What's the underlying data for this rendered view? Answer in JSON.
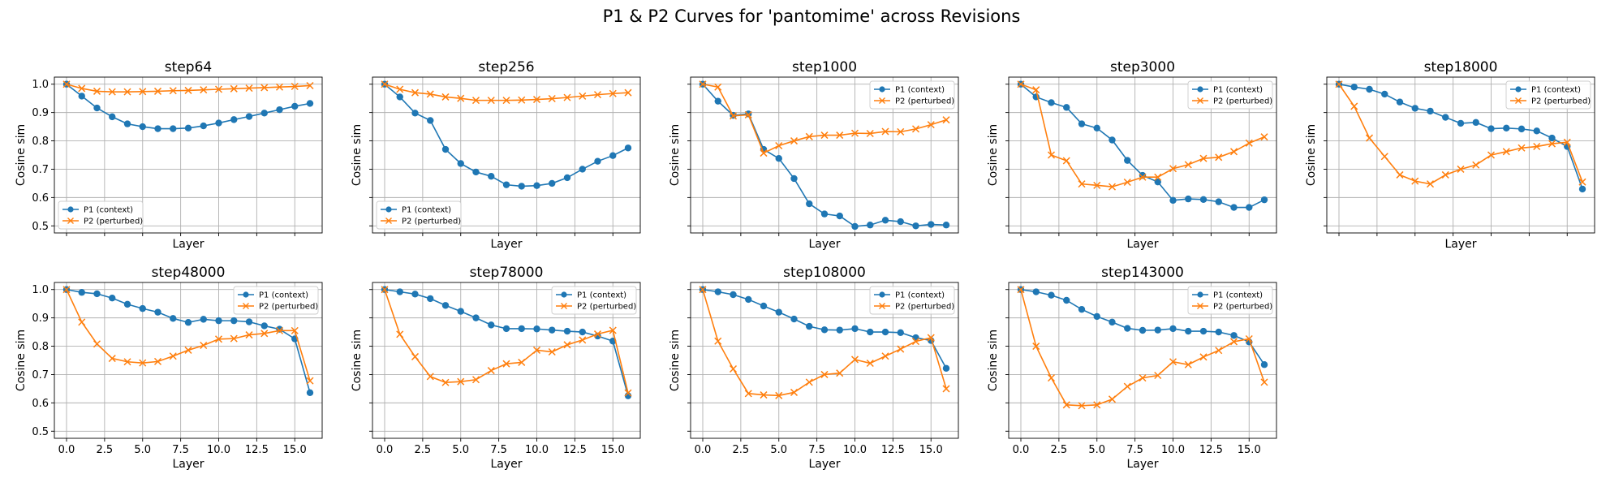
{
  "figure_title": "P1 & P2 Curves for 'pantomime' across Revisions",
  "chart_data": {
    "type": "line",
    "title": "P1 & P2 Curves for 'pantomime' across Revisions",
    "xlabel": "Layer",
    "ylabel": "Cosine sim",
    "xlim": [
      -0.8,
      16.8
    ],
    "ylim": [
      0.475,
      1.025
    ],
    "xticks": [
      0,
      2.5,
      5,
      7.5,
      10,
      12.5,
      15
    ],
    "xtick_labels": [
      "0.0",
      "2.5",
      "5.0",
      "7.5",
      "10.0",
      "12.5",
      "15.0"
    ],
    "yticks": [
      0.5,
      0.6,
      0.7,
      0.8,
      0.9,
      1.0
    ],
    "ytick_labels": [
      "0.5",
      "0.6",
      "0.7",
      "0.8",
      "0.9",
      "1.0"
    ],
    "grid": true,
    "x": [
      0,
      1,
      2,
      3,
      4,
      5,
      6,
      7,
      8,
      9,
      10,
      11,
      12,
      13,
      14,
      15,
      16
    ],
    "series_styles": [
      {
        "name": "P1 (context)",
        "color": "#1f77b4",
        "marker": "circle"
      },
      {
        "name": "P2 (perturbed)",
        "color": "#ff7f0e",
        "marker": "x"
      }
    ],
    "panels": [
      {
        "title": "step64",
        "legend": "lower-left",
        "series": [
          {
            "name": "P1 (context)",
            "values": [
              1.0,
              0.958,
              0.916,
              0.885,
              0.86,
              0.85,
              0.843,
              0.843,
              0.845,
              0.853,
              0.863,
              0.875,
              0.886,
              0.898,
              0.91,
              0.922,
              0.932
            ]
          },
          {
            "name": "P2 (perturbed)",
            "values": [
              1.0,
              0.985,
              0.975,
              0.973,
              0.973,
              0.974,
              0.975,
              0.977,
              0.978,
              0.98,
              0.982,
              0.984,
              0.986,
              0.988,
              0.99,
              0.992,
              0.995
            ]
          }
        ]
      },
      {
        "title": "step256",
        "legend": "lower-left",
        "series": [
          {
            "name": "P1 (context)",
            "values": [
              1.0,
              0.955,
              0.898,
              0.872,
              0.77,
              0.72,
              0.69,
              0.675,
              0.645,
              0.64,
              0.642,
              0.65,
              0.67,
              0.7,
              0.728,
              0.748,
              0.775
            ]
          },
          {
            "name": "P2 (perturbed)",
            "values": [
              1.0,
              0.982,
              0.97,
              0.965,
              0.955,
              0.95,
              0.943,
              0.943,
              0.943,
              0.944,
              0.946,
              0.949,
              0.953,
              0.958,
              0.963,
              0.967,
              0.97
            ]
          }
        ]
      },
      {
        "title": "step1000",
        "legend": "upper-right",
        "series": [
          {
            "name": "P1 (context)",
            "values": [
              1.0,
              0.94,
              0.89,
              0.895,
              0.77,
              0.738,
              0.667,
              0.578,
              0.542,
              0.535,
              0.498,
              0.503,
              0.52,
              0.515,
              0.5,
              0.505,
              0.503
            ]
          },
          {
            "name": "P2 (perturbed)",
            "values": [
              1.0,
              0.99,
              0.888,
              0.892,
              0.757,
              0.783,
              0.8,
              0.815,
              0.82,
              0.82,
              0.827,
              0.826,
              0.833,
              0.832,
              0.842,
              0.857,
              0.874
            ]
          }
        ]
      },
      {
        "title": "step3000",
        "legend": "upper-right",
        "series": [
          {
            "name": "P1 (context)",
            "values": [
              1.0,
              0.955,
              0.935,
              0.918,
              0.86,
              0.845,
              0.803,
              0.731,
              0.678,
              0.655,
              0.59,
              0.595,
              0.593,
              0.585,
              0.565,
              0.565,
              0.592
            ]
          },
          {
            "name": "P2 (perturbed)",
            "values": [
              1.0,
              0.98,
              0.75,
              0.73,
              0.648,
              0.643,
              0.638,
              0.654,
              0.672,
              0.672,
              0.702,
              0.716,
              0.738,
              0.742,
              0.762,
              0.792,
              0.814
            ]
          }
        ]
      },
      {
        "title": "step18000",
        "legend": "upper-right",
        "series": [
          {
            "name": "P1 (context)",
            "values": [
              1.0,
              0.99,
              0.982,
              0.965,
              0.937,
              0.915,
              0.905,
              0.883,
              0.862,
              0.865,
              0.843,
              0.845,
              0.842,
              0.835,
              0.81,
              0.78,
              0.63
            ]
          },
          {
            "name": "P2 (perturbed)",
            "values": [
              1.0,
              0.922,
              0.81,
              0.745,
              0.68,
              0.658,
              0.648,
              0.68,
              0.7,
              0.715,
              0.75,
              0.762,
              0.775,
              0.78,
              0.79,
              0.795,
              0.655
            ]
          }
        ]
      },
      {
        "title": "step48000",
        "legend": "upper-right",
        "series": [
          {
            "name": "P1 (context)",
            "values": [
              1.0,
              0.99,
              0.985,
              0.97,
              0.948,
              0.933,
              0.92,
              0.898,
              0.884,
              0.895,
              0.89,
              0.89,
              0.886,
              0.872,
              0.86,
              0.826,
              0.636
            ]
          },
          {
            "name": "P2 (perturbed)",
            "values": [
              1.0,
              0.885,
              0.808,
              0.757,
              0.745,
              0.741,
              0.746,
              0.765,
              0.786,
              0.803,
              0.825,
              0.827,
              0.84,
              0.845,
              0.855,
              0.855,
              0.678
            ]
          }
        ]
      },
      {
        "title": "step78000",
        "legend": "upper-right",
        "series": [
          {
            "name": "P1 (context)",
            "values": [
              1.0,
              0.992,
              0.984,
              0.968,
              0.944,
              0.923,
              0.9,
              0.875,
              0.862,
              0.862,
              0.861,
              0.857,
              0.853,
              0.85,
              0.836,
              0.818,
              0.625
            ]
          },
          {
            "name": "P2 (perturbed)",
            "values": [
              1.0,
              0.842,
              0.763,
              0.693,
              0.672,
              0.675,
              0.682,
              0.714,
              0.738,
              0.743,
              0.786,
              0.78,
              0.805,
              0.822,
              0.843,
              0.856,
              0.635
            ]
          }
        ]
      },
      {
        "title": "step108000",
        "legend": "upper-right",
        "series": [
          {
            "name": "P1 (context)",
            "values": [
              1.0,
              0.992,
              0.982,
              0.965,
              0.942,
              0.92,
              0.896,
              0.87,
              0.858,
              0.857,
              0.862,
              0.85,
              0.85,
              0.848,
              0.83,
              0.82,
              0.722
            ]
          },
          {
            "name": "P2 (perturbed)",
            "values": [
              1.0,
              0.818,
              0.72,
              0.633,
              0.628,
              0.626,
              0.637,
              0.673,
              0.7,
              0.705,
              0.753,
              0.74,
              0.765,
              0.79,
              0.817,
              0.83,
              0.65
            ]
          }
        ]
      },
      {
        "title": "step143000",
        "legend": "upper-right",
        "series": [
          {
            "name": "P1 (context)",
            "values": [
              1.0,
              0.992,
              0.98,
              0.962,
              0.93,
              0.905,
              0.885,
              0.863,
              0.856,
              0.857,
              0.862,
              0.853,
              0.853,
              0.85,
              0.838,
              0.815,
              0.735
            ]
          },
          {
            "name": "P2 (perturbed)",
            "values": [
              1.0,
              0.8,
              0.688,
              0.593,
              0.59,
              0.593,
              0.613,
              0.658,
              0.688,
              0.697,
              0.745,
              0.735,
              0.762,
              0.785,
              0.816,
              0.826,
              0.673
            ]
          }
        ]
      }
    ]
  }
}
